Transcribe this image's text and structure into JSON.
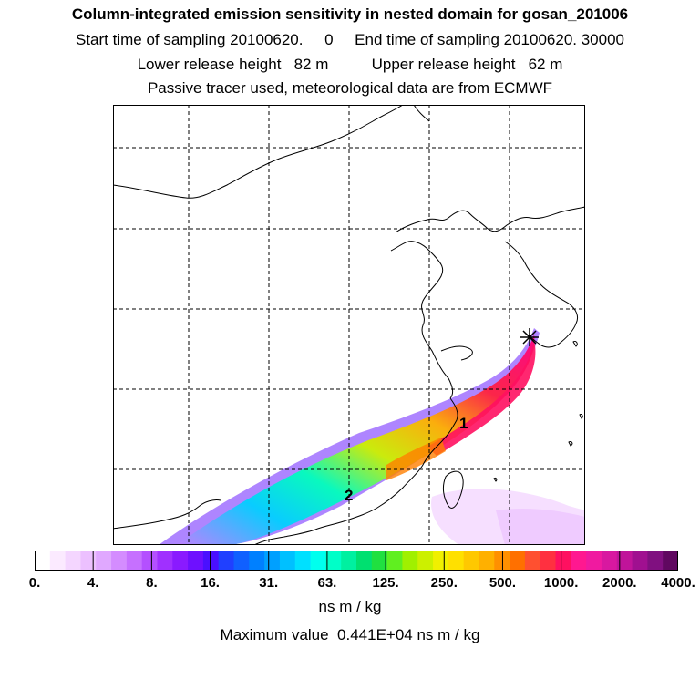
{
  "header": {
    "title": "Column-integrated emission sensitivity in nested domain for gosan_201006",
    "line2": "Start time of sampling 20100620.     0     End time of sampling 20100620. 30000",
    "line3": "Lower release height   82 m          Upper release height   62 m",
    "line4": "Passive tracer used, meteorological data are from ECMWF"
  },
  "map": {
    "labels": {
      "marker_1": "1",
      "marker_2": "2"
    },
    "colors": {
      "coastline": "#000000",
      "grid": "#000000",
      "source_marker": "#000000",
      "plume_edge": "#b080ff",
      "low": "#f2d9ff",
      "mid": "#00ffcc",
      "high": "#ff0066"
    }
  },
  "colorbar": {
    "tick_labels": [
      "0.",
      "4.",
      "8.",
      "16.",
      "31.",
      "63.",
      "125.",
      "250.",
      "500.",
      "1000.",
      "2000.",
      "4000."
    ],
    "colors": [
      "#ffffff",
      "#fbeaff",
      "#f4d6ff",
      "#ecc0ff",
      "#e0a8ff",
      "#d48cff",
      "#c670ff",
      "#b450ff",
      "#a030ff",
      "#8a1aff",
      "#6e10ff",
      "#4a10ff",
      "#2040ff",
      "#1060ff",
      "#0080ff",
      "#00a0ff",
      "#00c0ff",
      "#00e0ff",
      "#00ffee",
      "#00ffc8",
      "#00f0a0",
      "#00e070",
      "#20e040",
      "#60ef20",
      "#a0f000",
      "#ccf000",
      "#f0f000",
      "#ffe000",
      "#ffc800",
      "#ffb000",
      "#ff9000",
      "#ff7000",
      "#ff5030",
      "#ff3040",
      "#ff1060",
      "#ff1890",
      "#f01aa0",
      "#d818a0",
      "#c0149a",
      "#a01090",
      "#801080",
      "#600860"
    ],
    "units": "ns m / kg",
    "max_value_text": "Maximum value  0.441E+04 ns m / kg"
  }
}
